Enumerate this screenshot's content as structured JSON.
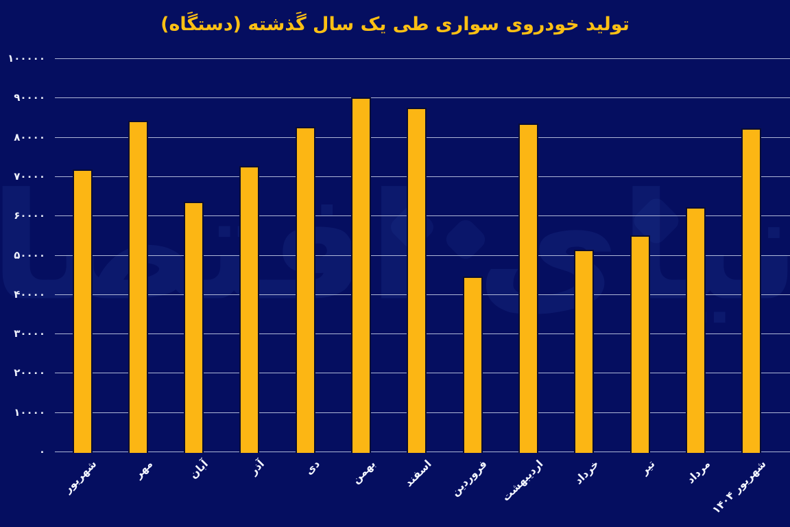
{
  "watermark": {
    "text": "دنیای اقتصاد"
  },
  "colors": {
    "background": "#050e60",
    "bar_fill": "#fcb614",
    "bar_outline": "#0a0d33",
    "title": "#fdc014",
    "axis_labels": "#eef1fb",
    "gridline": "#ced5ec",
    "watermark": "#3a62c8"
  },
  "chart_data": {
    "type": "bar",
    "title": "تولید خودروی سواری طی یک سال گَذشته (دستگَاه)",
    "orientation": "vertical",
    "order": "left-to-right",
    "grid": "horizontal",
    "legend": "none",
    "xlabel": "",
    "ylabel": "",
    "ylim": [
      0,
      100000
    ],
    "categories": [
      "شهریور",
      "مهر",
      "آبان",
      "آذر",
      "دی",
      "بهمن",
      "اسفند",
      "فروردین",
      "اردیبهشت",
      "خرداد",
      "تیر",
      "مرداد",
      "شهریور ۱۴۰۴"
    ],
    "values": [
      71800,
      84200,
      63500,
      72600,
      82600,
      90000,
      87400,
      44500,
      83500,
      51300,
      55000,
      62100,
      82200
    ],
    "y_ticks": [
      {
        "value": 0,
        "label": "۰"
      },
      {
        "value": 10000,
        "label": "۱۰۰۰۰"
      },
      {
        "value": 20000,
        "label": "۲۰۰۰۰"
      },
      {
        "value": 30000,
        "label": "۳۰۰۰۰"
      },
      {
        "value": 40000,
        "label": "۴۰۰۰۰"
      },
      {
        "value": 50000,
        "label": "۵۰۰۰۰"
      },
      {
        "value": 60000,
        "label": "۶۰۰۰۰"
      },
      {
        "value": 70000,
        "label": "۷۰۰۰۰"
      },
      {
        "value": 80000,
        "label": "۸۰۰۰۰"
      },
      {
        "value": 90000,
        "label": "۹۰۰۰۰"
      },
      {
        "value": 100000,
        "label": "۱۰۰۰۰۰"
      }
    ]
  }
}
